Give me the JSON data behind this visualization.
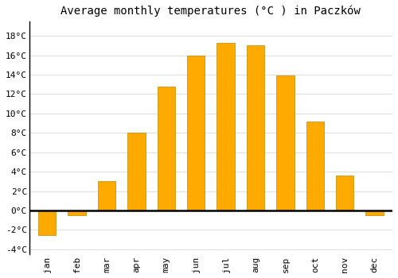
{
  "title": "Average monthly temperatures (°C ) in Paczków",
  "months": [
    "jan",
    "feb",
    "mar",
    "apr",
    "may",
    "jun",
    "jul",
    "aug",
    "sep",
    "oct",
    "nov",
    "dec"
  ],
  "values": [
    -2.5,
    -0.5,
    3.0,
    8.0,
    12.8,
    16.0,
    17.3,
    17.0,
    13.9,
    9.2,
    3.6,
    -0.5
  ],
  "bar_color": "#FFAA00",
  "bar_edge_color": "#BB8800",
  "background_color": "#FFFFFF",
  "grid_color": "#DDDDDD",
  "ylim": [
    -4.5,
    19.5
  ],
  "yticks": [
    -4,
    -2,
    0,
    2,
    4,
    6,
    8,
    10,
    12,
    14,
    16,
    18
  ],
  "title_fontsize": 10,
  "tick_fontsize": 8,
  "zero_line_color": "#000000",
  "bar_width": 0.6
}
